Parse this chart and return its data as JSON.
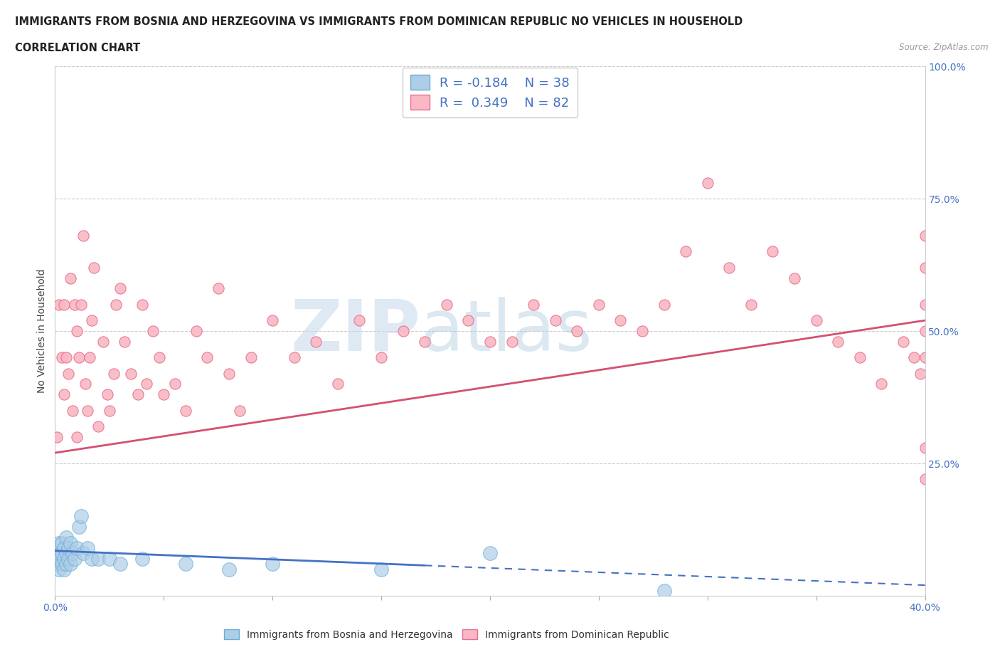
{
  "title_line1": "IMMIGRANTS FROM BOSNIA AND HERZEGOVINA VS IMMIGRANTS FROM DOMINICAN REPUBLIC NO VEHICLES IN HOUSEHOLD",
  "title_line2": "CORRELATION CHART",
  "source_text": "Source: ZipAtlas.com",
  "ylabel_label": "No Vehicles in Household",
  "x_min": 0.0,
  "x_max": 0.4,
  "y_min": 0.0,
  "y_max": 1.0,
  "x_ticks": [
    0.0,
    0.05,
    0.1,
    0.15,
    0.2,
    0.25,
    0.3,
    0.35,
    0.4
  ],
  "x_tick_labels": [
    "0.0%",
    "",
    "",
    "",
    "",
    "",
    "",
    "",
    "40.0%"
  ],
  "y_ticks": [
    0.0,
    0.25,
    0.5,
    0.75,
    1.0
  ],
  "y_tick_labels": [
    "",
    "25.0%",
    "50.0%",
    "75.0%",
    "100.0%"
  ],
  "bosnia_color": "#aecde8",
  "dominican_color": "#f9b8c4",
  "bosnia_edge_color": "#6aaed6",
  "dominican_edge_color": "#e87090",
  "bosnia_line_color": "#4472c4",
  "dominican_line_color": "#d45070",
  "bosnia_R": -0.184,
  "bosnia_N": 38,
  "dominican_R": 0.349,
  "dominican_N": 82,
  "watermark_zip": "ZIP",
  "watermark_atlas": "atlas",
  "background_color": "#ffffff",
  "grid_color": "#cccccc",
  "bosnia_scatter_x": [
    0.001,
    0.001,
    0.001,
    0.002,
    0.002,
    0.002,
    0.002,
    0.003,
    0.003,
    0.003,
    0.004,
    0.004,
    0.004,
    0.005,
    0.005,
    0.005,
    0.006,
    0.006,
    0.007,
    0.007,
    0.008,
    0.009,
    0.01,
    0.011,
    0.012,
    0.013,
    0.015,
    0.017,
    0.02,
    0.025,
    0.03,
    0.04,
    0.06,
    0.08,
    0.1,
    0.15,
    0.2,
    0.28
  ],
  "bosnia_scatter_y": [
    0.06,
    0.07,
    0.08,
    0.05,
    0.07,
    0.08,
    0.1,
    0.06,
    0.08,
    0.1,
    0.05,
    0.07,
    0.09,
    0.06,
    0.08,
    0.11,
    0.07,
    0.09,
    0.06,
    0.1,
    0.08,
    0.07,
    0.09,
    0.13,
    0.15,
    0.08,
    0.09,
    0.07,
    0.07,
    0.07,
    0.06,
    0.07,
    0.06,
    0.05,
    0.06,
    0.05,
    0.08,
    0.01
  ],
  "dominican_scatter_x": [
    0.001,
    0.002,
    0.003,
    0.004,
    0.004,
    0.005,
    0.006,
    0.007,
    0.008,
    0.009,
    0.01,
    0.01,
    0.011,
    0.012,
    0.013,
    0.014,
    0.015,
    0.016,
    0.017,
    0.018,
    0.02,
    0.022,
    0.024,
    0.025,
    0.027,
    0.028,
    0.03,
    0.032,
    0.035,
    0.038,
    0.04,
    0.042,
    0.045,
    0.048,
    0.05,
    0.055,
    0.06,
    0.065,
    0.07,
    0.075,
    0.08,
    0.085,
    0.09,
    0.1,
    0.11,
    0.12,
    0.13,
    0.14,
    0.15,
    0.16,
    0.17,
    0.18,
    0.19,
    0.2,
    0.21,
    0.22,
    0.23,
    0.24,
    0.25,
    0.26,
    0.27,
    0.28,
    0.29,
    0.3,
    0.31,
    0.32,
    0.33,
    0.34,
    0.35,
    0.36,
    0.37,
    0.38,
    0.39,
    0.395,
    0.398,
    0.4,
    0.4,
    0.4,
    0.4,
    0.4,
    0.4,
    0.4
  ],
  "dominican_scatter_y": [
    0.3,
    0.55,
    0.45,
    0.38,
    0.55,
    0.45,
    0.42,
    0.6,
    0.35,
    0.55,
    0.3,
    0.5,
    0.45,
    0.55,
    0.68,
    0.4,
    0.35,
    0.45,
    0.52,
    0.62,
    0.32,
    0.48,
    0.38,
    0.35,
    0.42,
    0.55,
    0.58,
    0.48,
    0.42,
    0.38,
    0.55,
    0.4,
    0.5,
    0.45,
    0.38,
    0.4,
    0.35,
    0.5,
    0.45,
    0.58,
    0.42,
    0.35,
    0.45,
    0.52,
    0.45,
    0.48,
    0.4,
    0.52,
    0.45,
    0.5,
    0.48,
    0.55,
    0.52,
    0.48,
    0.48,
    0.55,
    0.52,
    0.5,
    0.55,
    0.52,
    0.5,
    0.55,
    0.65,
    0.78,
    0.62,
    0.55,
    0.65,
    0.6,
    0.52,
    0.48,
    0.45,
    0.4,
    0.48,
    0.45,
    0.42,
    0.45,
    0.5,
    0.55,
    0.62,
    0.68,
    0.22,
    0.28
  ],
  "dom_trend_x0": 0.0,
  "dom_trend_y0": 0.27,
  "dom_trend_x1": 0.4,
  "dom_trend_y1": 0.52,
  "bos_trend_x0": 0.0,
  "bos_trend_y0": 0.085,
  "bos_trend_x1": 0.4,
  "bos_trend_y1": 0.02
}
